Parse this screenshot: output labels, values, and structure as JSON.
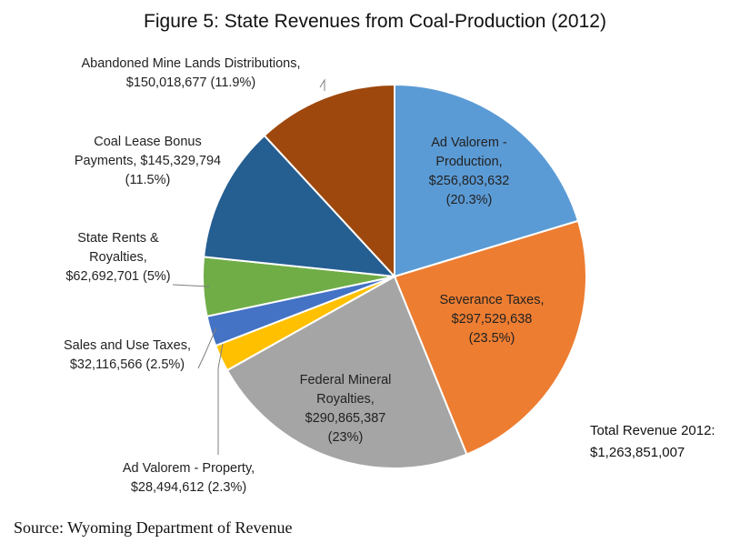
{
  "chart_data": {
    "type": "pie",
    "title": "Figure 5: State Revenues from Coal-Production (2012)",
    "slices": [
      {
        "name": "Ad Valorem - Production",
        "label_lines": [
          "Ad Valorem -",
          "Production,",
          "$256,803,632",
          "(20.3%)"
        ],
        "value": 256803632,
        "percent": 20.3,
        "color": "#5b9bd5"
      },
      {
        "name": "Severance Taxes",
        "label_lines": [
          "Severance Taxes,",
          "$297,529,638",
          "(23.5%)"
        ],
        "value": 297529638,
        "percent": 23.5,
        "color": "#ed7d31"
      },
      {
        "name": "Federal Mineral Royalties",
        "label_lines": [
          "Federal Mineral",
          "Royalties,",
          "$290,865,387",
          "(23%)"
        ],
        "value": 290865387,
        "percent": 23,
        "color": "#a5a5a5"
      },
      {
        "name": "Ad Valorem - Property",
        "label_lines": [
          "Ad Valorem - Property,",
          "$28,494,612  (2.3%)"
        ],
        "value": 28494612,
        "percent": 2.3,
        "color": "#ffc000"
      },
      {
        "name": "Sales and Use Taxes",
        "label_lines": [
          "Sales and Use Taxes,",
          "$32,116,566  (2.5%)"
        ],
        "value": 32116566,
        "percent": 2.5,
        "color": "#4472c4"
      },
      {
        "name": "State Rents & Royalties",
        "label_lines": [
          "State Rents &",
          "Royalties,",
          "$62,692,701 (5%)"
        ],
        "value": 62692701,
        "percent": 5,
        "color": "#70ad47"
      },
      {
        "name": "Coal Lease Bonus Payments",
        "label_lines": [
          "Coal Lease Bonus",
          "Payments, $145,329,794",
          "(11.5%)"
        ],
        "value": 145329794,
        "percent": 11.5,
        "color": "#255e91"
      },
      {
        "name": "Abandoned Mine Lands Distributions",
        "label_lines": [
          "Abandoned Mine Lands Distributions,",
          "$150,018,677  (11.9%)"
        ],
        "value": 150018677,
        "percent": 11.9,
        "color": "#9e480e"
      }
    ],
    "total_lines": [
      "Total Revenue 2012:",
      "$1,263,851,007"
    ]
  },
  "footer": {
    "source": "Source: Wyoming Department of Revenue"
  }
}
